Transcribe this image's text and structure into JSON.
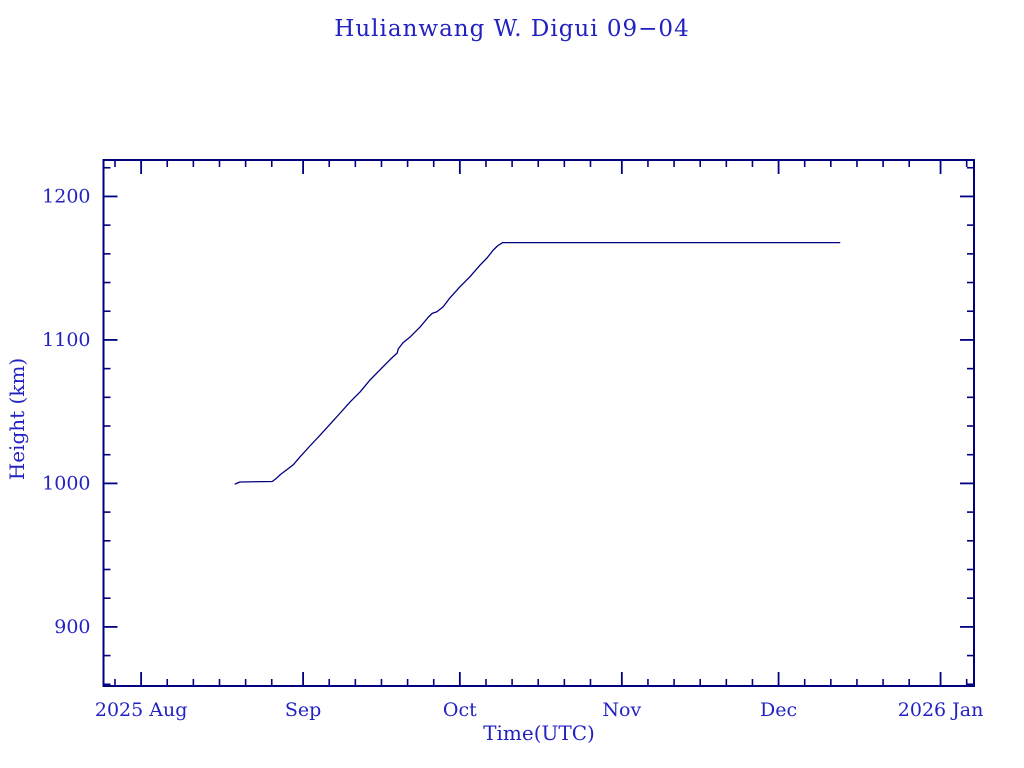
{
  "chart_data": {
    "type": "line",
    "title": "Hulianwang W. Digui 09−04",
    "xlabel": "Time(UTC)",
    "ylabel": "Height (km)",
    "x_unit": "days since 2025-08-01 00:00 UTC",
    "xlim": [
      -7.2,
      159.4
    ],
    "ylim": [
      858.8,
      1225.4
    ],
    "x_ticks": [
      {
        "day": 0,
        "label": "2025 Aug"
      },
      {
        "day": 31,
        "label": "Sep"
      },
      {
        "day": 61,
        "label": "Oct"
      },
      {
        "day": 92,
        "label": "Nov"
      },
      {
        "day": 122,
        "label": "Dec"
      },
      {
        "day": 153,
        "label": "2026 Jan"
      }
    ],
    "x_minor_days": [
      -5,
      5,
      10,
      15,
      20,
      25,
      36,
      41,
      46,
      51,
      56,
      66,
      71,
      76,
      81,
      86,
      97,
      102,
      107,
      112,
      117,
      127,
      132,
      137,
      142,
      147,
      158
    ],
    "y_ticks": [
      {
        "value": 900,
        "label": "900"
      },
      {
        "value": 1000,
        "label": "1000"
      },
      {
        "value": 1100,
        "label": "1100"
      },
      {
        "value": 1200,
        "label": "1200"
      }
    ],
    "y_minor_values": [
      860,
      880,
      920,
      940,
      960,
      980,
      1020,
      1040,
      1060,
      1080,
      1120,
      1140,
      1160,
      1180,
      1220
    ],
    "series": [
      {
        "name": "orbit-height",
        "color": "#000080",
        "points": [
          [
            18.0,
            999.6
          ],
          [
            18.9,
            1001.0
          ],
          [
            25.1,
            1001.3
          ],
          [
            25.9,
            1003.6
          ],
          [
            26.7,
            1006.3
          ],
          [
            28.1,
            1010.1
          ],
          [
            29.1,
            1013.0
          ],
          [
            30.4,
            1018.5
          ],
          [
            32.3,
            1026.1
          ],
          [
            34.3,
            1033.8
          ],
          [
            36.2,
            1041.5
          ],
          [
            38.1,
            1049.1
          ],
          [
            40.0,
            1056.8
          ],
          [
            41.9,
            1063.8
          ],
          [
            43.8,
            1072.1
          ],
          [
            45.7,
            1079.1
          ],
          [
            47.6,
            1086.1
          ],
          [
            49.0,
            1090.9
          ],
          [
            49.2,
            1093.7
          ],
          [
            50.1,
            1097.9
          ],
          [
            51.5,
            1102.1
          ],
          [
            53.4,
            1109.1
          ],
          [
            55.0,
            1116.0
          ],
          [
            55.7,
            1118.5
          ],
          [
            56.6,
            1119.6
          ],
          [
            57.8,
            1123.0
          ],
          [
            59.1,
            1129.3
          ],
          [
            61.0,
            1137.0
          ],
          [
            62.9,
            1143.9
          ],
          [
            64.9,
            1152.3
          ],
          [
            66.2,
            1157.1
          ],
          [
            67.4,
            1162.7
          ],
          [
            68.3,
            1165.8
          ],
          [
            69.2,
            1167.8
          ],
          [
            133.7,
            1167.8
          ]
        ]
      }
    ],
    "grid": false,
    "legend": "none",
    "colors": {
      "axis": "#000080",
      "text": "#2222c2",
      "line": "#000080",
      "background": "#ffffff"
    }
  }
}
